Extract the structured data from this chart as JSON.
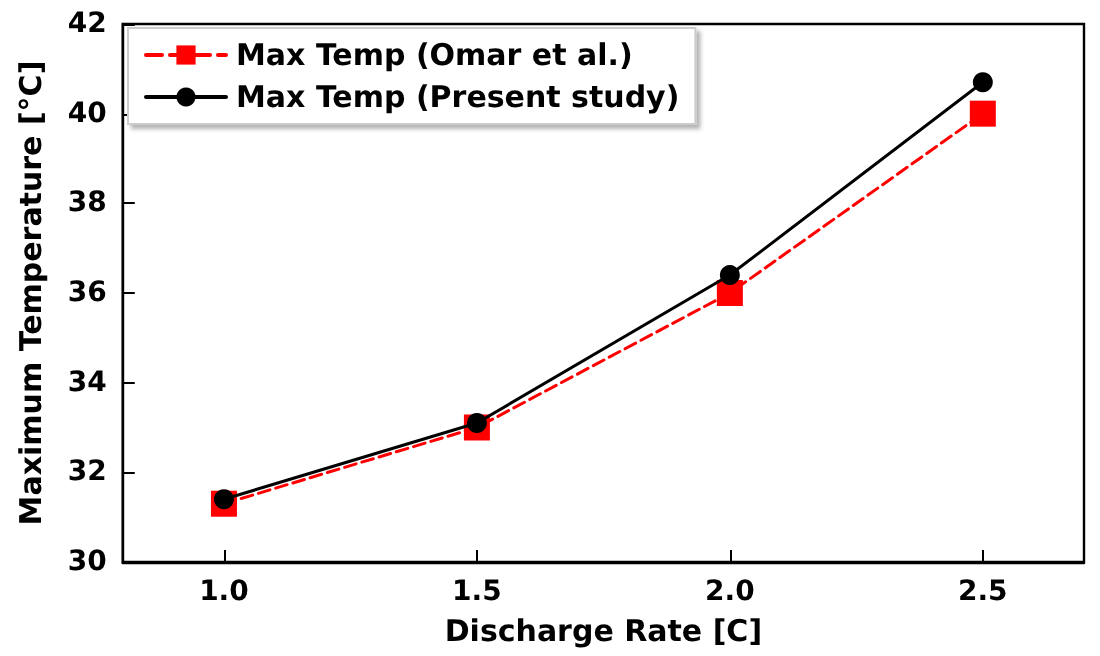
{
  "chart_data": {
    "type": "line",
    "xlabel": "Discharge Rate [C]",
    "ylabel": "Maximum Temperature [°C]",
    "x": [
      1.0,
      1.5,
      2.0,
      2.5
    ],
    "series": [
      {
        "name": "Max Temp (Omar et al.)",
        "color": "#ff0000",
        "values": [
          31.3,
          33.0,
          36.0,
          40.0
        ],
        "marker": "square",
        "line_style": "dashed"
      },
      {
        "name": "Max Temp (Present study)",
        "color": "#000000",
        "values": [
          31.4,
          33.1,
          36.4,
          40.7
        ],
        "marker": "circle",
        "line_style": "solid"
      }
    ],
    "xlim": [
      0.8,
      2.7
    ],
    "xticks": [
      {
        "value": 1.0,
        "label": "1.0"
      },
      {
        "value": 1.5,
        "label": "1.5"
      },
      {
        "value": 2.0,
        "label": "2.0"
      },
      {
        "value": 2.5,
        "label": "2.5"
      }
    ],
    "ylim": [
      30,
      42
    ],
    "yticks": [
      30,
      32,
      34,
      36,
      38,
      40,
      42
    ],
    "grid": false,
    "legend": "top left"
  }
}
